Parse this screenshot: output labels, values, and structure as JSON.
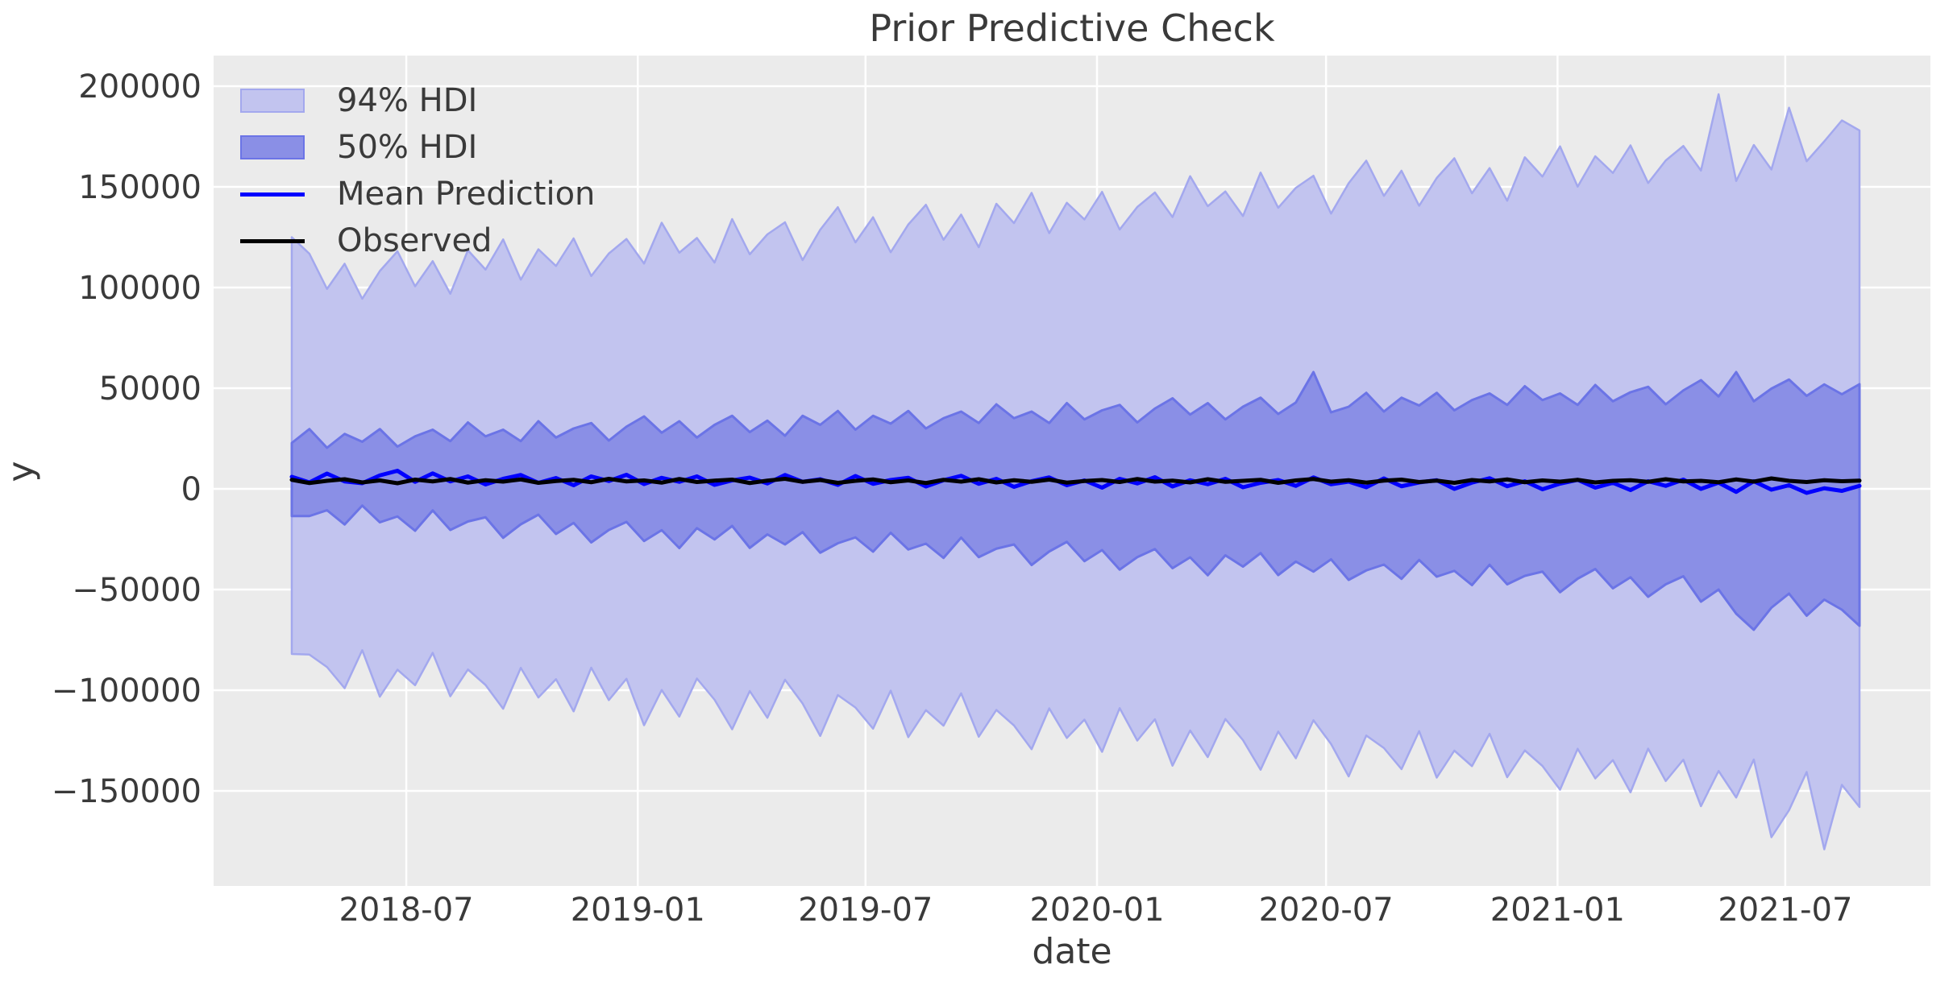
{
  "title": "Prior Predictive Check",
  "axes": {
    "xlabel": "date",
    "ylabel": "y",
    "x_ticks": [
      {
        "label": "2018-07",
        "date": "2018-07-01"
      },
      {
        "label": "2019-01",
        "date": "2019-01-01"
      },
      {
        "label": "2019-07",
        "date": "2019-07-01"
      },
      {
        "label": "2020-01",
        "date": "2020-01-01"
      },
      {
        "label": "2020-07",
        "date": "2020-07-01"
      },
      {
        "label": "2021-01",
        "date": "2021-01-01"
      },
      {
        "label": "2021-07",
        "date": "2021-07-01"
      }
    ],
    "y_ticks": [
      200000,
      150000,
      100000,
      50000,
      0,
      -50000,
      -100000,
      -150000
    ]
  },
  "legend": {
    "items": [
      {
        "label": "94% HDI",
        "type": "patch"
      },
      {
        "label": "50% HDI",
        "type": "patch"
      },
      {
        "label": "Mean Prediction",
        "type": "line"
      },
      {
        "label": "Observed",
        "type": "line"
      }
    ]
  },
  "colors": {
    "background": "#ebebeb",
    "grid": "#ffffff",
    "text": "#3a3a3a",
    "hdi94_fill": "#c2c4ef",
    "hdi94_edge": "#a3a8ee",
    "hdi50_fill": "#8a8fe6",
    "hdi50_edge": "#6b74e6",
    "mean_line": "#0000ff",
    "observed_line": "#000000"
  },
  "chart_data": {
    "type": "line",
    "title": "Prior Predictive Check",
    "xlabel": "date",
    "ylabel": "y",
    "grid": true,
    "legend_position": "upper left",
    "x_start_date": "2018-04-01",
    "x_end_date": "2021-08-29",
    "x_interval_days": 14,
    "n_points": 90,
    "ylim": [
      -197000,
      215000
    ],
    "xlim": [
      "2018-01-29",
      "2021-10-30"
    ],
    "series": [
      {
        "name": "94% HDI upper",
        "values": [
          125000,
          116800,
          99300,
          111800,
          94400,
          108200,
          118000,
          100600,
          113100,
          96900,
          118500,
          108900,
          123900,
          103900,
          119000,
          110700,
          124400,
          105700,
          116900,
          124100,
          111900,
          132200,
          117300,
          124600,
          112400,
          134000,
          116500,
          126400,
          132400,
          113600,
          128700,
          139900,
          122400,
          134900,
          117500,
          131300,
          141100,
          123700,
          136200,
          120000,
          141600,
          132000,
          147000,
          127000,
          142100,
          133800,
          147500,
          128800,
          140000,
          147200,
          135000,
          155300,
          140400,
          147700,
          135500,
          157100,
          139600,
          149500,
          155500,
          136700,
          151800,
          163000,
          145500,
          158000,
          140600,
          154400,
          164200,
          146800,
          159300,
          143100,
          164700,
          155100,
          170100,
          150100,
          165200,
          156900,
          170600,
          151900,
          163100,
          170300,
          158100,
          196000,
          152900,
          170800,
          158600,
          189300,
          162700,
          172600,
          183000,
          178000
        ]
      },
      {
        "name": "50% HDI upper",
        "values": [
          22800,
          29700,
          20400,
          27300,
          23400,
          29700,
          21000,
          26100,
          29400,
          23700,
          33000,
          26100,
          29400,
          23700,
          33600,
          25500,
          30000,
          32700,
          24000,
          30900,
          36000,
          27900,
          33600,
          25500,
          31800,
          36300,
          28200,
          33900,
          26400,
          36300,
          31800,
          38700,
          29400,
          36300,
          32400,
          38700,
          30000,
          35100,
          38400,
          32700,
          42000,
          35100,
          38400,
          32700,
          42600,
          34500,
          39000,
          41700,
          33000,
          39900,
          45000,
          36900,
          42600,
          34500,
          40800,
          45300,
          37200,
          42900,
          58000,
          38000,
          40800,
          47700,
          38400,
          45300,
          41400,
          47700,
          39000,
          44100,
          47400,
          41700,
          51000,
          44100,
          47400,
          41700,
          51600,
          43500,
          48000,
          50700,
          42000,
          48900,
          54000,
          45900,
          58000,
          43500,
          49800,
          54300,
          46200,
          51900,
          47000,
          52000
        ]
      },
      {
        "name": "Mean Prediction",
        "values": [
          6000,
          3200,
          7600,
          3700,
          2800,
          6700,
          9000,
          3500,
          7700,
          3700,
          6200,
          2200,
          5000,
          6900,
          3000,
          5400,
          1800,
          6200,
          3900,
          7000,
          2400,
          5500,
          3500,
          6200,
          2000,
          4200,
          5600,
          2700,
          6900,
          3500,
          4800,
          2000,
          6400,
          2500,
          4400,
          5500,
          1200,
          4300,
          6500,
          2500,
          5000,
          1000,
          3800,
          5700,
          1800,
          4200,
          600,
          5000,
          2700,
          5800,
          1200,
          4300,
          2300,
          5000,
          800,
          3000,
          4400,
          1500,
          5700,
          2300,
          3600,
          800,
          5200,
          1300,
          3200,
          4300,
          0,
          3100,
          5300,
          1300,
          3800,
          -200,
          2600,
          4500,
          600,
          3000,
          -600,
          3800,
          1500,
          4600,
          0,
          3100,
          -1500,
          3800,
          -400,
          1800,
          -2000,
          300,
          -1000,
          1500
        ]
      },
      {
        "name": "Observed",
        "values": [
          4500,
          2900,
          4000,
          4800,
          3200,
          4200,
          2800,
          4600,
          3700,
          4900,
          3100,
          4300,
          3600,
          4700,
          3000,
          3900,
          4500,
          3300,
          5000,
          3700,
          4200,
          3100,
          4900,
          3400,
          4100,
          4600,
          2900,
          4100,
          5000,
          3500,
          4400,
          3000,
          4000,
          4700,
          3300,
          4200,
          2900,
          4500,
          3600,
          4800,
          3200,
          4300,
          3500,
          4600,
          3100,
          3900,
          4400,
          3400,
          4900,
          3600,
          4100,
          3200,
          4800,
          3500,
          4000,
          4500,
          3000,
          4200,
          4900,
          3600,
          4300,
          3100,
          4100,
          4600,
          3400,
          4100,
          3000,
          4400,
          3700,
          4700,
          3300,
          4200,
          3600,
          4500,
          3200,
          4000,
          4300,
          3500,
          4800,
          3700,
          4000,
          3300,
          4700,
          3600,
          5200,
          4000,
          3400,
          4300,
          3800,
          4100
        ]
      },
      {
        "name": "50% HDI lower",
        "values": [
          -13500,
          -13500,
          -10600,
          -17700,
          -8300,
          -16600,
          -13700,
          -20800,
          -10700,
          -20400,
          -16200,
          -14100,
          -24300,
          -17600,
          -12800,
          -22400,
          -16900,
          -26600,
          -20400,
          -16400,
          -25900,
          -20500,
          -29400,
          -19500,
          -25100,
          -18400,
          -29300,
          -22600,
          -27600,
          -21500,
          -31700,
          -27000,
          -24100,
          -31200,
          -21800,
          -30100,
          -27200,
          -34300,
          -24200,
          -33900,
          -29700,
          -27600,
          -37800,
          -31100,
          -26300,
          -35900,
          -30400,
          -40100,
          -33900,
          -29900,
          -39400,
          -34000,
          -42900,
          -33000,
          -38600,
          -31900,
          -42800,
          -36100,
          -41100,
          -35000,
          -45200,
          -40500,
          -37600,
          -44700,
          -35300,
          -43600,
          -40700,
          -47800,
          -37700,
          -47400,
          -43200,
          -41100,
          -51300,
          -44600,
          -39800,
          -49400,
          -43900,
          -53600,
          -47400,
          -43400,
          -56000,
          -50000,
          -62000,
          -70000,
          -59000,
          -52000,
          -63000,
          -55000,
          -60000,
          -68000
        ]
      },
      {
        "name": "94% HDI lower",
        "values": [
          -82000,
          -82300,
          -88500,
          -99000,
          -80100,
          -103200,
          -89800,
          -97500,
          -81400,
          -103000,
          -89700,
          -97400,
          -109200,
          -88900,
          -103600,
          -94500,
          -110500,
          -88800,
          -104900,
          -94300,
          -117400,
          -99900,
          -113100,
          -94200,
          -104700,
          -119400,
          -100400,
          -113700,
          -94800,
          -106600,
          -122700,
          -102400,
          -108600,
          -119100,
          -100200,
          -123300,
          -109900,
          -117600,
          -101500,
          -123100,
          -109800,
          -117500,
          -129300,
          -109000,
          -123700,
          -114600,
          -130600,
          -108900,
          -125000,
          -114400,
          -137500,
          -120000,
          -133200,
          -114300,
          -124800,
          -139500,
          -120500,
          -133800,
          -114900,
          -126700,
          -142800,
          -122500,
          -128700,
          -139200,
          -120300,
          -143400,
          -130000,
          -137700,
          -121600,
          -143200,
          -129900,
          -137600,
          -149400,
          -129100,
          -143800,
          -134700,
          -150700,
          -129000,
          -145100,
          -134500,
          -157600,
          -140100,
          -153300,
          -134400,
          -173000,
          -159600,
          -140600,
          -179000,
          -147000,
          -158000
        ]
      }
    ]
  }
}
